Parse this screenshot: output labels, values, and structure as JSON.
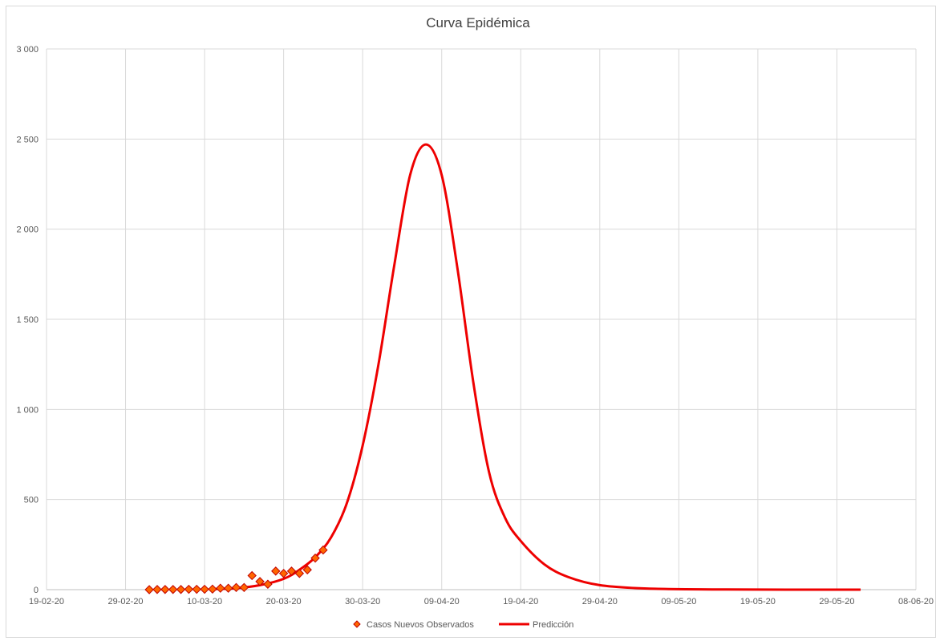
{
  "chart_data": {
    "type": "scatter",
    "title": "Curva Epidémica",
    "xlabel": "",
    "ylabel": "",
    "x_ticks": [
      "19-02-20",
      "29-02-20",
      "10-03-20",
      "20-03-20",
      "30-03-20",
      "09-04-20",
      "19-04-20",
      "29-04-20",
      "09-05-20",
      "19-05-20",
      "29-05-20",
      "08-06-20"
    ],
    "x_range": [
      "2020-02-19",
      "2020-06-08"
    ],
    "y_ticks": [
      "0",
      "500",
      "1 000",
      "1 500",
      "2 000",
      "2 500",
      "3 000"
    ],
    "ylim": [
      0,
      3000
    ],
    "grid": true,
    "legend_position": "bottom",
    "series": [
      {
        "name": "Casos Nuevos Observados",
        "kind": "scatter",
        "marker": "diamond",
        "color": "#ff6600",
        "edge_color": "#c00000",
        "points": [
          {
            "x": "2020-03-03",
            "y": 0
          },
          {
            "x": "2020-03-04",
            "y": 1
          },
          {
            "x": "2020-03-05",
            "y": 1
          },
          {
            "x": "2020-03-06",
            "y": 1
          },
          {
            "x": "2020-03-07",
            "y": 1
          },
          {
            "x": "2020-03-08",
            "y": 2
          },
          {
            "x": "2020-03-09",
            "y": 2
          },
          {
            "x": "2020-03-10",
            "y": 2
          },
          {
            "x": "2020-03-11",
            "y": 3
          },
          {
            "x": "2020-03-12",
            "y": 8
          },
          {
            "x": "2020-03-13",
            "y": 8
          },
          {
            "x": "2020-03-14",
            "y": 12
          },
          {
            "x": "2020-03-15",
            "y": 12
          },
          {
            "x": "2020-03-16",
            "y": 78
          },
          {
            "x": "2020-03-17",
            "y": 45
          },
          {
            "x": "2020-03-18",
            "y": 30
          },
          {
            "x": "2020-03-19",
            "y": 103
          },
          {
            "x": "2020-03-20",
            "y": 90
          },
          {
            "x": "2020-03-21",
            "y": 103
          },
          {
            "x": "2020-03-22",
            "y": 90
          },
          {
            "x": "2020-03-23",
            "y": 110
          },
          {
            "x": "2020-03-24",
            "y": 175
          },
          {
            "x": "2020-03-25",
            "y": 220
          }
        ]
      },
      {
        "name": "Predicción",
        "kind": "line",
        "color": "#ee0000",
        "points": [
          {
            "x": "2020-03-11",
            "y": 3
          },
          {
            "x": "2020-03-14",
            "y": 8
          },
          {
            "x": "2020-03-17",
            "y": 25
          },
          {
            "x": "2020-03-20",
            "y": 60
          },
          {
            "x": "2020-03-22",
            "y": 110
          },
          {
            "x": "2020-03-24",
            "y": 180
          },
          {
            "x": "2020-03-26",
            "y": 290
          },
          {
            "x": "2020-03-28",
            "y": 480
          },
          {
            "x": "2020-03-30",
            "y": 800
          },
          {
            "x": "2020-04-01",
            "y": 1250
          },
          {
            "x": "2020-04-03",
            "y": 1800
          },
          {
            "x": "2020-04-05",
            "y": 2300
          },
          {
            "x": "2020-04-07",
            "y": 2470
          },
          {
            "x": "2020-04-09",
            "y": 2300
          },
          {
            "x": "2020-04-11",
            "y": 1780
          },
          {
            "x": "2020-04-13",
            "y": 1150
          },
          {
            "x": "2020-04-15",
            "y": 650
          },
          {
            "x": "2020-04-17",
            "y": 400
          },
          {
            "x": "2020-04-19",
            "y": 270
          },
          {
            "x": "2020-04-22",
            "y": 140
          },
          {
            "x": "2020-04-25",
            "y": 70
          },
          {
            "x": "2020-04-29",
            "y": 25
          },
          {
            "x": "2020-05-05",
            "y": 6
          },
          {
            "x": "2020-05-15",
            "y": 1
          },
          {
            "x": "2020-06-01",
            "y": 0
          }
        ]
      }
    ]
  }
}
